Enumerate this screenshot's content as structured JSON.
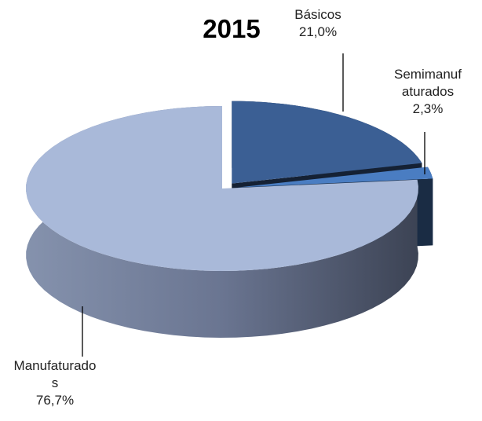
{
  "chart_data": {
    "type": "pie",
    "title": "2015",
    "categories": [
      "Básicos",
      "Semimanufaturados",
      "Manufaturados"
    ],
    "values": [
      21.0,
      2.3,
      76.7
    ],
    "value_labels": [
      "21,0%",
      "2,3%",
      "76,7%"
    ],
    "colors": [
      "#3b5f94",
      "#4a7dc2",
      "#a9b9d9"
    ]
  }
}
